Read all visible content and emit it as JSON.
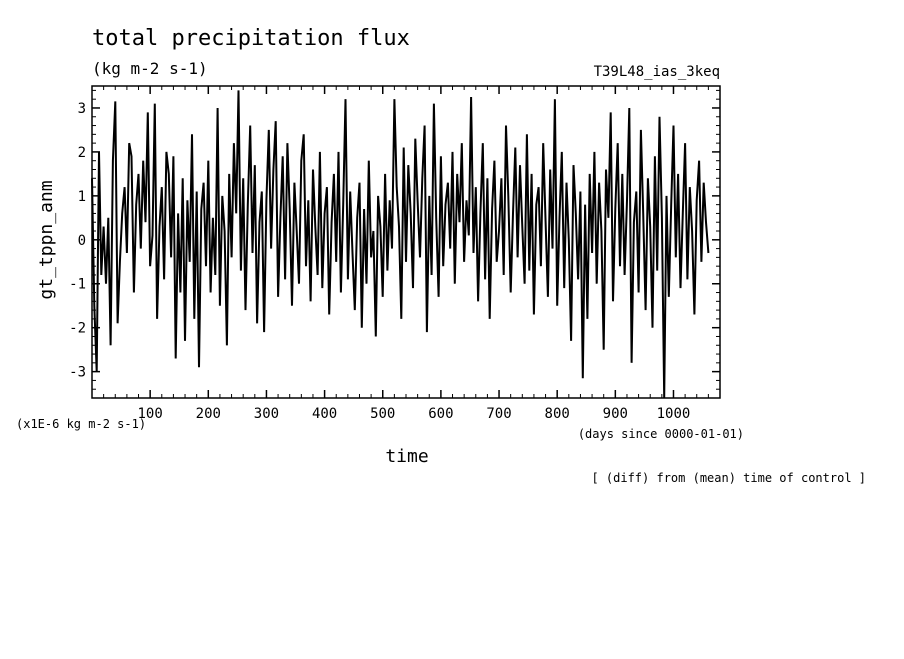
{
  "chart_data": {
    "type": "line",
    "title": "total precipitation flux",
    "units": "(kg m-2 s-1)",
    "run_label": "T39L48_ias_3keq",
    "xlabel": "time",
    "xunits": "(days since 0000-01-01)",
    "ylabel": "gt_tppn_anm",
    "yscale_note": "(x1E-6 kg m-2 s-1)",
    "footnote": "[ (diff) from (mean) time of control ]",
    "xlim": [
      0,
      1080
    ],
    "ylim": [
      -3.6,
      3.5
    ],
    "x_ticks": [
      100,
      200,
      300,
      400,
      500,
      600,
      700,
      800,
      900,
      1000
    ],
    "y_ticks": [
      -3,
      -2,
      -1,
      0,
      1,
      2,
      3
    ],
    "grid": false,
    "series": [
      {
        "x_start": 0,
        "x_step": 4,
        "values": [
          1.4,
          -1.5,
          -3.0,
          2.0,
          -0.8,
          0.3,
          -1.0,
          0.5,
          -2.4,
          1.8,
          3.15,
          -1.9,
          -0.5,
          0.6,
          1.2,
          -0.3,
          2.2,
          1.9,
          -1.2,
          0.8,
          1.5,
          -0.2,
          1.8,
          0.4,
          2.9,
          -0.6,
          0.1,
          3.1,
          -1.8,
          0.3,
          1.2,
          -0.9,
          2.0,
          1.5,
          -0.4,
          1.9,
          -2.7,
          0.6,
          -1.2,
          1.4,
          -2.3,
          0.9,
          -0.5,
          2.4,
          -1.8,
          1.1,
          -2.9,
          0.7,
          1.3,
          -0.6,
          1.8,
          -1.2,
          0.5,
          -0.8,
          3.0,
          -1.5,
          1.0,
          0.2,
          -2.4,
          1.5,
          -0.4,
          2.2,
          0.6,
          3.4,
          -0.7,
          1.4,
          -1.6,
          0.8,
          2.6,
          -0.3,
          1.7,
          -1.9,
          0.4,
          1.1,
          -2.1,
          0.9,
          2.5,
          -0.2,
          1.6,
          2.7,
          -1.3,
          0.5,
          1.9,
          -0.9,
          2.2,
          0.7,
          -1.5,
          1.3,
          0.2,
          -1.0,
          1.8,
          2.4,
          -0.6,
          0.9,
          -1.4,
          1.6,
          0.3,
          -0.8,
          2.0,
          -1.1,
          0.6,
          1.2,
          -1.7,
          0.4,
          1.5,
          -0.5,
          2.0,
          -1.2,
          0.8,
          3.2,
          -0.9,
          1.1,
          -0.3,
          -1.6,
          0.5,
          1.3,
          -2.0,
          0.7,
          -1.0,
          1.8,
          -0.4,
          0.2,
          -2.2,
          1.0,
          0.3,
          -1.3,
          1.5,
          -0.7,
          0.9,
          -0.2,
          3.2,
          1.2,
          0.3,
          -1.8,
          2.1,
          -0.5,
          1.7,
          0.6,
          -1.1,
          2.3,
          0.9,
          -0.4,
          1.4,
          2.6,
          -2.1,
          1.0,
          -0.8,
          3.1,
          0.5,
          -1.3,
          1.9,
          -0.6,
          0.8,
          1.3,
          -0.2,
          2.0,
          -1.0,
          1.5,
          0.4,
          2.2,
          -0.5,
          0.9,
          0.1,
          3.25,
          -0.3,
          1.2,
          -1.4,
          0.6,
          2.2,
          -0.9,
          1.4,
          -1.8,
          0.7,
          1.8,
          -0.5,
          0.2,
          1.4,
          -0.8,
          2.6,
          1.0,
          -1.2,
          0.6,
          2.1,
          -0.4,
          1.7,
          0.3,
          -1.0,
          2.4,
          -0.7,
          1.5,
          -1.7,
          0.8,
          1.2,
          -0.6,
          2.2,
          0.4,
          -1.3,
          1.6,
          -0.2,
          3.2,
          -1.5,
          0.5,
          2.0,
          -1.1,
          1.3,
          0.0,
          -2.3,
          1.7,
          0.6,
          -0.9,
          1.1,
          -3.15,
          0.8,
          -1.8,
          1.5,
          -0.3,
          2.0,
          -1.0,
          1.3,
          0.2,
          -2.5,
          1.6,
          0.5,
          2.9,
          -1.4,
          0.7,
          2.2,
          -0.6,
          1.5,
          -0.8,
          0.9,
          3.0,
          -2.8,
          0.4,
          1.1,
          -1.2,
          2.5,
          0.6,
          -1.6,
          1.4,
          0.3,
          -2.0,
          1.9,
          -0.7,
          2.8,
          0.5,
          -3.6,
          1.0,
          -1.3,
          0.8,
          2.6,
          -0.4,
          1.5,
          -1.1,
          0.6,
          2.2,
          -0.9,
          1.2,
          0.2,
          -1.7,
          0.9,
          1.8,
          -0.5,
          1.3,
          0.4,
          -0.3
        ]
      }
    ]
  }
}
